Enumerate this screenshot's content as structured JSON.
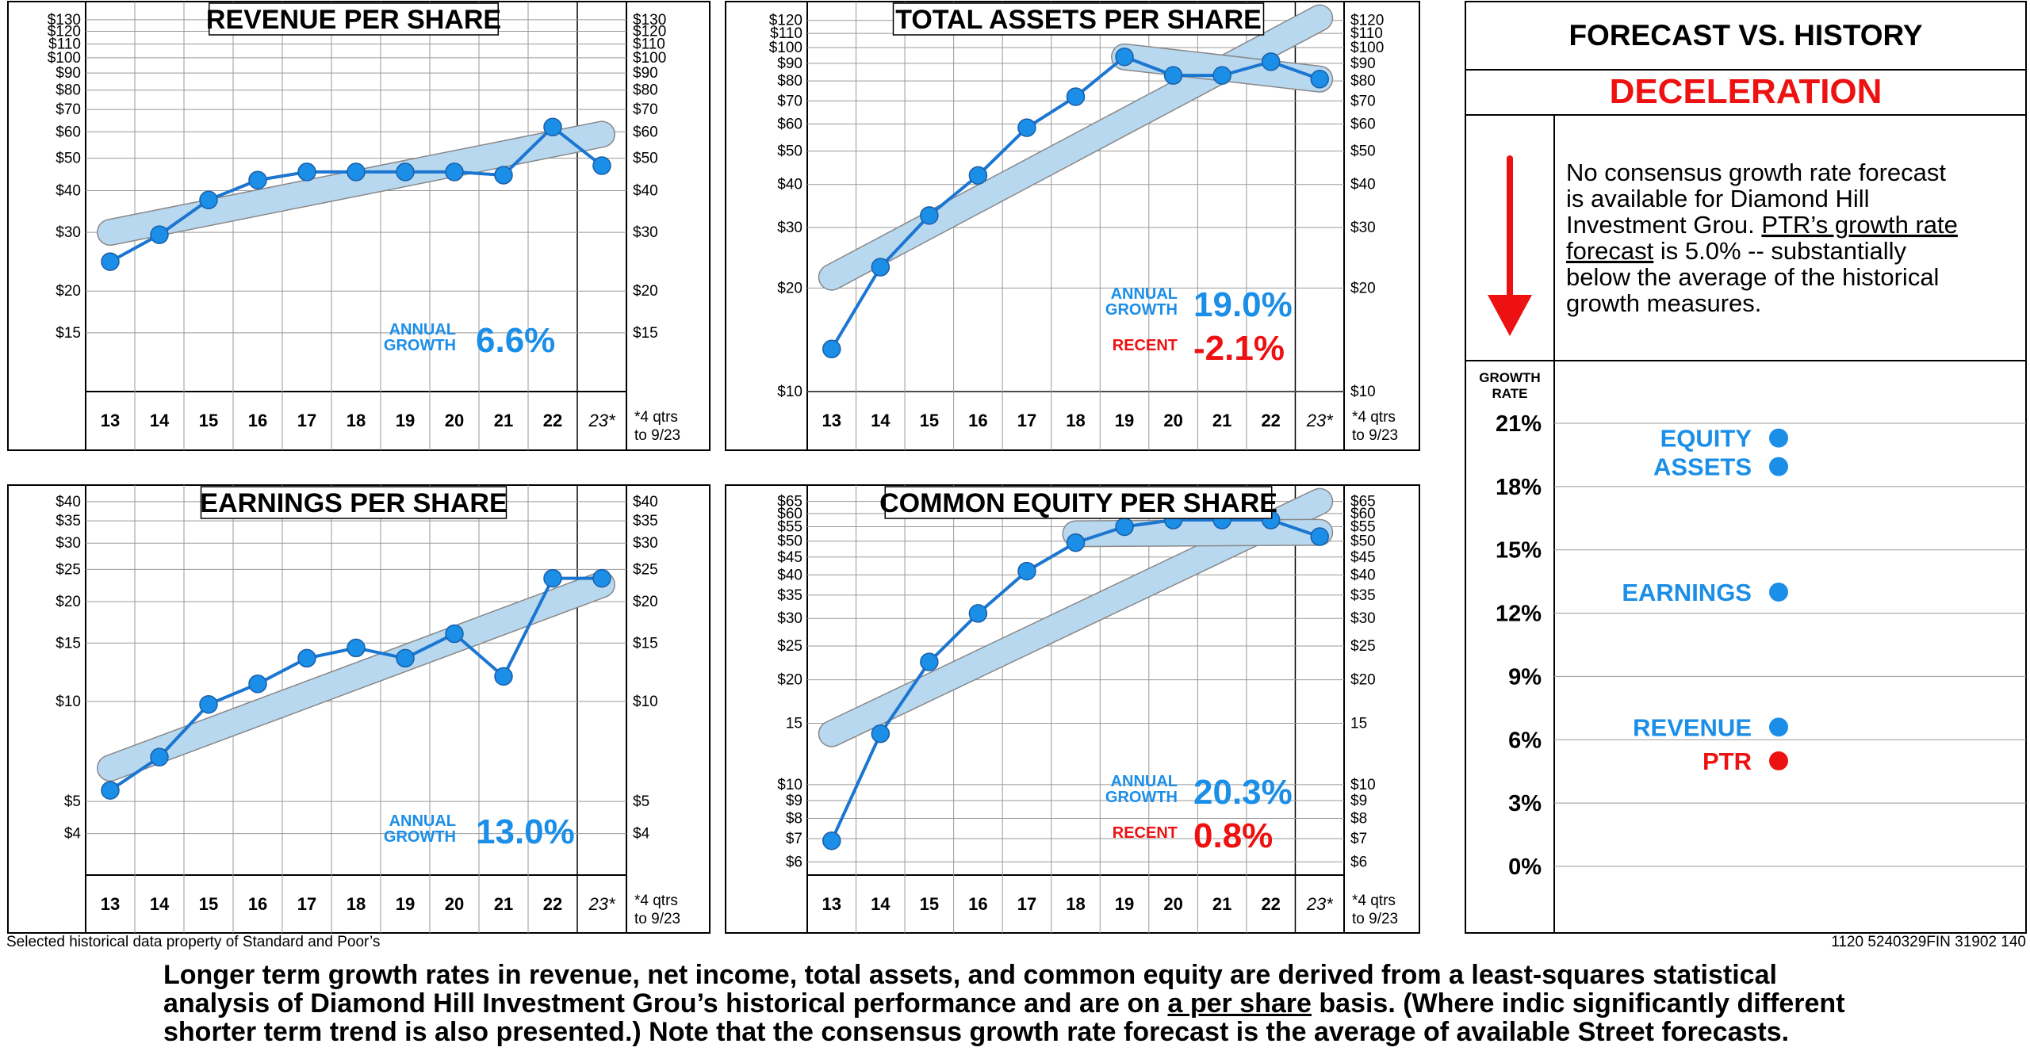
{
  "common": {
    "year_labels": [
      "13",
      "14",
      "15",
      "16",
      "17",
      "18",
      "19",
      "20",
      "21",
      "22",
      "23*"
    ],
    "footnote_line1": "*4 qtrs",
    "footnote_line2": "to 9/23",
    "colors": {
      "line": "#1b76d1",
      "band_fill": "#b8d8f0",
      "band_stroke": "#888888",
      "accent_blue": "#1b8ee8",
      "accent_red": "#ee1111",
      "grid": "#999999"
    }
  },
  "chart_data": [
    {
      "type": "line",
      "title": "REVENUE PER SHARE",
      "scale": "log",
      "ylim": [
        10,
        135
      ],
      "yticks": [
        {
          "v": 15,
          "label": "$15"
        },
        {
          "v": 20,
          "label": "$20"
        },
        {
          "v": 30,
          "label": "$30"
        },
        {
          "v": 40,
          "label": "$40"
        },
        {
          "v": 50,
          "label": "$50"
        },
        {
          "v": 60,
          "label": "$60"
        },
        {
          "v": 70,
          "label": "$70"
        },
        {
          "v": 80,
          "label": "$80"
        },
        {
          "v": 90,
          "label": "$90"
        },
        {
          "v": 100,
          "label": "$100"
        },
        {
          "v": 110,
          "label": "$110"
        },
        {
          "v": 120,
          "label": "$120"
        },
        {
          "v": 130,
          "label": "$130"
        }
      ],
      "categories": [
        "13",
        "14",
        "15",
        "16",
        "17",
        "18",
        "19",
        "20",
        "21",
        "22",
        "23*"
      ],
      "values": [
        24.5,
        29.5,
        37.5,
        43,
        45.5,
        45.5,
        45.5,
        45.5,
        44.5,
        62,
        47.5
      ],
      "trend": [
        {
          "x": 0,
          "y": 30
        },
        {
          "x": 10,
          "y": 59
        }
      ],
      "stats": [
        {
          "label_line1": "ANNUAL",
          "label_line2": "GROWTH",
          "value": "6.6%",
          "color": "blue"
        }
      ]
    },
    {
      "type": "line",
      "title": "TOTAL ASSETS PER SHARE",
      "scale": "log",
      "ylim": [
        10,
        125
      ],
      "yticks": [
        {
          "v": 10,
          "label": "$10"
        },
        {
          "v": 20,
          "label": "$20"
        },
        {
          "v": 30,
          "label": "$30"
        },
        {
          "v": 40,
          "label": "$40"
        },
        {
          "v": 50,
          "label": "$50"
        },
        {
          "v": 60,
          "label": "$60"
        },
        {
          "v": 70,
          "label": "$70"
        },
        {
          "v": 80,
          "label": "$80"
        },
        {
          "v": 90,
          "label": "$90"
        },
        {
          "v": 100,
          "label": "$100"
        },
        {
          "v": 110,
          "label": "$110"
        },
        {
          "v": 120,
          "label": "$120"
        }
      ],
      "categories": [
        "13",
        "14",
        "15",
        "16",
        "17",
        "18",
        "19",
        "20",
        "21",
        "22",
        "23*"
      ],
      "values": [
        13.3,
        23,
        32.5,
        42.5,
        58.5,
        72,
        94,
        83,
        83,
        91,
        81
      ],
      "trend": [
        {
          "x": 0,
          "y": 21.5
        },
        {
          "x": 10,
          "y": 122
        }
      ],
      "trend2": [
        {
          "x": 6,
          "y": 94
        },
        {
          "x": 10,
          "y": 81
        }
      ],
      "stats": [
        {
          "label_line1": "ANNUAL",
          "label_line2": "GROWTH",
          "value": "19.0%",
          "color": "blue"
        },
        {
          "label_line1": "RECENT",
          "label_line2": "",
          "value": "-2.1%",
          "color": "red"
        }
      ]
    },
    {
      "type": "line",
      "title": "EARNINGS PER SHARE",
      "scale": "log",
      "ylim": [
        3,
        42
      ],
      "yticks": [
        {
          "v": 4,
          "label": "$4"
        },
        {
          "v": 5,
          "label": "$5"
        },
        {
          "v": 10,
          "label": "$10"
        },
        {
          "v": 15,
          "label": "$15"
        },
        {
          "v": 20,
          "label": "$20"
        },
        {
          "v": 25,
          "label": "$25"
        },
        {
          "v": 30,
          "label": "$30"
        },
        {
          "v": 35,
          "label": "$35"
        },
        {
          "v": 40,
          "label": "$40"
        }
      ],
      "categories": [
        "13",
        "14",
        "15",
        "16",
        "17",
        "18",
        "19",
        "20",
        "21",
        "22",
        "23*"
      ],
      "values": [
        5.4,
        6.8,
        9.8,
        11.3,
        13.5,
        14.5,
        13.5,
        16,
        11.9,
        23.5,
        23.5
      ],
      "trend": [
        {
          "x": 0,
          "y": 6.3
        },
        {
          "x": 10,
          "y": 22.5
        }
      ],
      "stats": [
        {
          "label_line1": "ANNUAL",
          "label_line2": "GROWTH",
          "value": "13.0%",
          "color": "blue"
        }
      ]
    },
    {
      "type": "line",
      "title": "COMMON EQUITY PER SHARE",
      "scale": "log",
      "ylim": [
        5.5,
        68
      ],
      "yticks": [
        {
          "v": 6,
          "label": "$6"
        },
        {
          "v": 7,
          "label": "$7"
        },
        {
          "v": 8,
          "label": "$8"
        },
        {
          "v": 9,
          "label": "$9"
        },
        {
          "v": 10,
          "label": "$10"
        },
        {
          "v": 15,
          "label": "15"
        },
        {
          "v": 20,
          "label": "$20"
        },
        {
          "v": 25,
          "label": "$25"
        },
        {
          "v": 30,
          "label": "$30"
        },
        {
          "v": 35,
          "label": "$35"
        },
        {
          "v": 40,
          "label": "$40"
        },
        {
          "v": 45,
          "label": "$45"
        },
        {
          "v": 50,
          "label": "$50"
        },
        {
          "v": 55,
          "label": "$55"
        },
        {
          "v": 60,
          "label": "$60"
        },
        {
          "v": 65,
          "label": "$65"
        }
      ],
      "categories": [
        "13",
        "14",
        "15",
        "16",
        "17",
        "18",
        "19",
        "20",
        "21",
        "22",
        "23*"
      ],
      "values": [
        6.9,
        14,
        22.5,
        31,
        41,
        49.5,
        55,
        57.5,
        57.5,
        57.5,
        51.5
      ],
      "trend": [
        {
          "x": 0,
          "y": 14
        },
        {
          "x": 10,
          "y": 65
        }
      ],
      "trend2": [
        {
          "x": 5,
          "y": 52.5
        },
        {
          "x": 10,
          "y": 53
        }
      ],
      "stats": [
        {
          "label_line1": "ANNUAL",
          "label_line2": "GROWTH",
          "value": "20.3%",
          "color": "blue"
        },
        {
          "label_line1": "RECENT",
          "label_line2": "",
          "value": "0.8%",
          "color": "red"
        }
      ]
    },
    {
      "type": "scatter",
      "title": "FORECAST VS. HISTORY",
      "subtitle": "DECELERATION",
      "ylabel_line1": "GROWTH",
      "ylabel_line2": "RATE",
      "ylim": [
        0,
        21
      ],
      "yticks": [
        {
          "v": 21,
          "label": "21%"
        },
        {
          "v": 18,
          "label": "18%"
        },
        {
          "v": 15,
          "label": "15%"
        },
        {
          "v": 12,
          "label": "12%"
        },
        {
          "v": 9,
          "label": "9%"
        },
        {
          "v": 6,
          "label": "6%"
        },
        {
          "v": 3,
          "label": "3%"
        },
        {
          "v": 0,
          "label": "0%"
        }
      ],
      "points": [
        {
          "name": "EQUITY",
          "value": 20.3,
          "color": "blue"
        },
        {
          "name": "ASSETS",
          "value": 19.0,
          "color": "blue"
        },
        {
          "name": "EARNINGS",
          "value": 13.0,
          "color": "blue"
        },
        {
          "name": "REVENUE",
          "value": 6.6,
          "color": "blue"
        },
        {
          "name": "PTR",
          "value": 5.0,
          "color": "red"
        }
      ]
    }
  ],
  "forecast_text": {
    "line1": "No consensus growth rate forecast",
    "line2": "is available for Diamond Hill",
    "line3a": "Investment Grou. ",
    "line3b": "PTR’s growth rate",
    "line4a": "forecast",
    "line4b": " is 5.0% --   substantially",
    "line5": "below the average of the historical",
    "line6": "growth measures."
  },
  "footer": {
    "note_left": "Selected historical data property of Standard and Poor’s",
    "note_right": "1120 5240329FIN 31902 140",
    "summary_a": "Longer term growth rates in revenue, net income, total assets, and common equity are derived from a least-squares  statistical analysis of Diamond Hill Investment Grou’s historical performance and are on ",
    "summary_u": "a per share",
    "summary_b": " basis. (Where indic significantly different shorter term trend is also presented.) Note that the consensus growth rate forecast is the average of available Street forecasts."
  }
}
